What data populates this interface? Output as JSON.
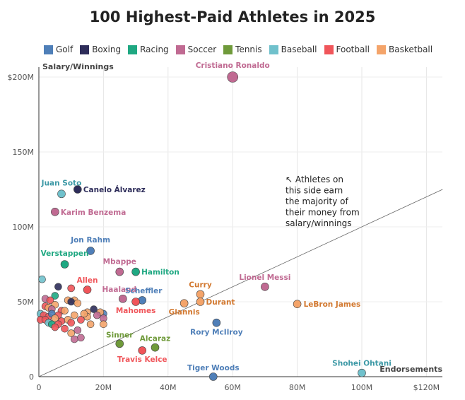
{
  "chart_data": {
    "type": "scatter",
    "title": "100 Highest-Paid Athletes in 2025",
    "xlabel": "Endorsements",
    "ylabel": "Salary/Winnings",
    "xlim": [
      0,
      125
    ],
    "ylim": [
      0,
      205
    ],
    "xticks": [
      0,
      20,
      40,
      60,
      80,
      100,
      120
    ],
    "xtick_labels": [
      "0",
      "20M",
      "40M",
      "60M",
      "80M",
      "100M",
      "$120M"
    ],
    "yticks": [
      0,
      50,
      100,
      150,
      200
    ],
    "ytick_labels": [
      "0",
      "50M",
      "100M",
      "150M",
      "$200M"
    ],
    "grid": "vertical and horizontal",
    "annotation": "↖ Athletes on this side earn the majority of their money from salary/winnings",
    "legend_placement": "top",
    "categories": [
      {
        "name": "Golf",
        "color": "#4f7fb8"
      },
      {
        "name": "Boxing",
        "color": "#2e2d5a"
      },
      {
        "name": "Racing",
        "color": "#1fa882"
      },
      {
        "name": "Soccer",
        "color": "#c06a92"
      },
      {
        "name": "Tennis",
        "color": "#6f9a3a"
      },
      {
        "name": "Baseball",
        "color": "#70c1cc"
      },
      {
        "name": "Football",
        "color": "#f0555a"
      },
      {
        "name": "Basketball",
        "color": "#f4a46a"
      }
    ],
    "labeled_points": [
      {
        "name": "Cristiano Ronaldo",
        "sport": "Soccer",
        "x": 60,
        "y": 200,
        "lx": 0,
        "ly": -13,
        "anchor": "middle"
      },
      {
        "name": "Juan Soto",
        "sport": "Baseball",
        "x": 7,
        "y": 122,
        "lx": 0,
        "ly": -12,
        "anchor": "middle"
      },
      {
        "name": "Canelo Álvarez",
        "sport": "Boxing",
        "x": 12,
        "y": 125,
        "lx": 8,
        "ly": 4,
        "anchor": "start"
      },
      {
        "name": "Karim Benzema",
        "sport": "Soccer",
        "x": 5,
        "y": 110,
        "lx": 8,
        "ly": 4,
        "anchor": "start"
      },
      {
        "name": "Jon Rahm",
        "sport": "Golf",
        "x": 16,
        "y": 84,
        "lx": 0,
        "ly": -12,
        "anchor": "middle"
      },
      {
        "name": "Verstappen",
        "sport": "Racing",
        "x": 8,
        "y": 75,
        "lx": 0,
        "ly": -12,
        "anchor": "middle"
      },
      {
        "name": "Mbappe",
        "sport": "Soccer",
        "x": 25,
        "y": 70,
        "lx": 0,
        "ly": -11,
        "anchor": "middle"
      },
      {
        "name": "Hamilton",
        "sport": "Racing",
        "x": 30,
        "y": 70,
        "lx": 8,
        "ly": 4,
        "anchor": "start"
      },
      {
        "name": "Allen",
        "sport": "Football",
        "x": 15,
        "y": 58,
        "lx": 0,
        "ly": -10,
        "anchor": "middle"
      },
      {
        "name": "Haaland",
        "sport": "Soccer",
        "x": 26,
        "y": 52,
        "lx": -5,
        "ly": -10,
        "anchor": "middle"
      },
      {
        "name": "Scheffler",
        "sport": "Golf",
        "x": 32,
        "y": 51,
        "lx": 2,
        "ly": -10,
        "anchor": "middle"
      },
      {
        "name": "Mahomes",
        "sport": "Football",
        "x": 30,
        "y": 50,
        "lx": 0,
        "ly": 16,
        "anchor": "middle"
      },
      {
        "name": "Curry",
        "sport": "Basketball",
        "x": 50,
        "y": 55,
        "lx": 0,
        "ly": -10,
        "anchor": "middle"
      },
      {
        "name": "Durant",
        "sport": "Basketball",
        "x": 50,
        "y": 50,
        "lx": 8,
        "ly": 4,
        "anchor": "start"
      },
      {
        "name": "Giannis",
        "sport": "Basketball",
        "x": 45,
        "y": 49,
        "lx": 0,
        "ly": 16,
        "anchor": "middle"
      },
      {
        "name": "Lionel Messi",
        "sport": "Soccer",
        "x": 70,
        "y": 60,
        "lx": 0,
        "ly": -10,
        "anchor": "middle"
      },
      {
        "name": "LeBron James",
        "sport": "Basketball",
        "x": 80,
        "y": 48.5,
        "lx": 9,
        "ly": 4,
        "anchor": "start"
      },
      {
        "name": "Rory McIlroy",
        "sport": "Golf",
        "x": 55,
        "y": 36,
        "lx": 0,
        "ly": 17,
        "anchor": "middle"
      },
      {
        "name": "Sinner",
        "sport": "Tennis",
        "x": 25,
        "y": 22,
        "lx": 0,
        "ly": -9,
        "anchor": "middle"
      },
      {
        "name": "Alcaraz",
        "sport": "Tennis",
        "x": 36,
        "y": 19.5,
        "lx": 0,
        "ly": -9,
        "anchor": "middle"
      },
      {
        "name": "Travis Kelce",
        "sport": "Football",
        "x": 32,
        "y": 17.5,
        "lx": 0,
        "ly": 16,
        "anchor": "middle"
      },
      {
        "name": "Tiger Woods",
        "sport": "Golf",
        "x": 54,
        "y": 0,
        "lx": 0,
        "ly": -9,
        "anchor": "middle"
      },
      {
        "name": "Shohei Ohtani",
        "sport": "Baseball",
        "x": 100,
        "y": 2.5,
        "lx": 0,
        "ly": -10,
        "anchor": "middle"
      }
    ],
    "other_points": [
      {
        "sport": "Baseball",
        "x": 1,
        "y": 65
      },
      {
        "sport": "Boxing",
        "x": 6,
        "y": 60
      },
      {
        "sport": "Football",
        "x": 10,
        "y": 59
      },
      {
        "sport": "Racing",
        "x": 5,
        "y": 54
      },
      {
        "sport": "Soccer",
        "x": 2,
        "y": 52
      },
      {
        "sport": "Football",
        "x": 3.5,
        "y": 51
      },
      {
        "sport": "Basketball",
        "x": 9,
        "y": 51
      },
      {
        "sport": "Basketball",
        "x": 11,
        "y": 51
      },
      {
        "sport": "Boxing",
        "x": 10,
        "y": 50
      },
      {
        "sport": "Basketball",
        "x": 12,
        "y": 49
      },
      {
        "sport": "Basketball",
        "x": 5,
        "y": 48
      },
      {
        "sport": "Football",
        "x": 2,
        "y": 47
      },
      {
        "sport": "Basketball",
        "x": 3,
        "y": 46
      },
      {
        "sport": "Soccer",
        "x": 4,
        "y": 45
      },
      {
        "sport": "Boxing",
        "x": 17,
        "y": 45
      },
      {
        "sport": "Football",
        "x": 7,
        "y": 44
      },
      {
        "sport": "Basketball",
        "x": 8,
        "y": 44
      },
      {
        "sport": "Golf",
        "x": 20,
        "y": 42
      },
      {
        "sport": "Basketball",
        "x": 15,
        "y": 43
      },
      {
        "sport": "Basketball",
        "x": 19,
        "y": 43
      },
      {
        "sport": "Soccer",
        "x": 18,
        "y": 41
      },
      {
        "sport": "Baseball",
        "x": 0.5,
        "y": 42
      },
      {
        "sport": "Football",
        "x": 1.5,
        "y": 41
      },
      {
        "sport": "Football",
        "x": 3,
        "y": 40
      },
      {
        "sport": "Golf",
        "x": 4,
        "y": 42
      },
      {
        "sport": "Football",
        "x": 6,
        "y": 41
      },
      {
        "sport": "Basketball",
        "x": 11,
        "y": 41
      },
      {
        "sport": "Football",
        "x": 0.5,
        "y": 38
      },
      {
        "sport": "Football",
        "x": 2,
        "y": 38
      },
      {
        "sport": "Basketball",
        "x": 5,
        "y": 39
      },
      {
        "sport": "Football",
        "x": 7,
        "y": 37
      },
      {
        "sport": "Basketball",
        "x": 9,
        "y": 38
      },
      {
        "sport": "Football",
        "x": 10,
        "y": 36
      },
      {
        "sport": "Football",
        "x": 13,
        "y": 38
      },
      {
        "sport": "Basketball",
        "x": 15,
        "y": 40
      },
      {
        "sport": "Soccer",
        "x": 20,
        "y": 39
      },
      {
        "sport": "Basketball",
        "x": 16,
        "y": 35
      },
      {
        "sport": "Baseball",
        "x": 3,
        "y": 36
      },
      {
        "sport": "Racing",
        "x": 4,
        "y": 35
      },
      {
        "sport": "Football",
        "x": 6,
        "y": 35
      },
      {
        "sport": "Football",
        "x": 5,
        "y": 33
      },
      {
        "sport": "Football",
        "x": 8,
        "y": 32
      },
      {
        "sport": "Soccer",
        "x": 12,
        "y": 31
      },
      {
        "sport": "Basketball",
        "x": 10,
        "y": 29
      },
      {
        "sport": "Soccer",
        "x": 13,
        "y": 26
      },
      {
        "sport": "Soccer",
        "x": 11,
        "y": 25
      },
      {
        "sport": "Basketball",
        "x": 20,
        "y": 35
      },
      {
        "sport": "Basketball",
        "x": 14,
        "y": 42
      }
    ]
  }
}
